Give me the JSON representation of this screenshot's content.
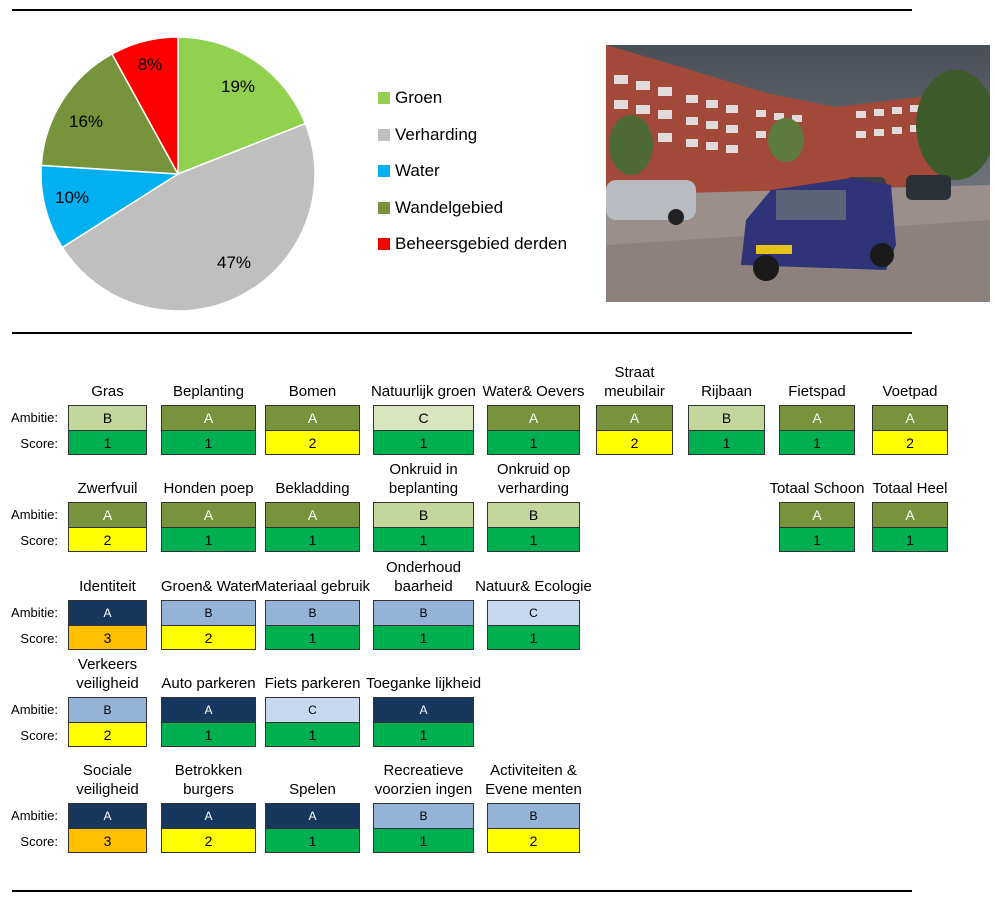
{
  "colors": {
    "groen": "#92D050",
    "verharding": "#BFBFBF",
    "water": "#00B0F0",
    "wandelgebied": "#77933C",
    "derden": "#FF0000",
    "amb_A_green": "#77933C",
    "amb_B_green": "#C3D69B",
    "amb_C_green": "#D7E4BD",
    "amb_A_blue": "#17375E",
    "amb_B_blue": "#95B3D7",
    "amb_C_blue": "#C6D9F1",
    "score_1": "#00B050",
    "score_2": "#FFFF00",
    "score_3": "#FFC000"
  },
  "chart_data": {
    "type": "pie",
    "slices": [
      {
        "label": "Groen",
        "value": 19,
        "text": "19%",
        "color": "#92D050"
      },
      {
        "label": "Verharding",
        "value": 47,
        "text": "47%",
        "color": "#BFBFBF"
      },
      {
        "label": "Water",
        "value": 10,
        "text": "10%",
        "color": "#00B0F0"
      },
      {
        "label": "Wandelgebied",
        "value": 16,
        "text": "16%",
        "color": "#77933C"
      },
      {
        "label": "Beheersgebied derden",
        "value": 8,
        "text": "8%",
        "color": "#FF0000"
      }
    ],
    "legend_position": "right"
  },
  "legend": [
    {
      "label": "Groen",
      "color": "#92D050"
    },
    {
      "label": "Verharding",
      "color": "#BFBFBF"
    },
    {
      "label": "Water",
      "color": "#00B0F0"
    },
    {
      "label": "Wandelgebied",
      "color": "#77933C"
    },
    {
      "label": "Beheersgebied derden",
      "color": "#FF0000"
    }
  ],
  "labels": {
    "ambitie": "Ambitie:",
    "score": "Score:"
  },
  "rows": [
    {
      "items": [
        {
          "title": "Gras",
          "ambitie": "B",
          "amb_color": "#C3D69B",
          "score": "1"
        },
        {
          "title": "Beplanting",
          "ambitie": "A",
          "amb_color": "#77933C",
          "score": "1"
        },
        {
          "title": "Bomen",
          "ambitie": "A",
          "amb_color": "#77933C",
          "score": "2"
        },
        {
          "title": "Natuurlijk groen",
          "ambitie": "C",
          "amb_color": "#D7E4BD",
          "score": "1"
        },
        {
          "title": "Water& Oevers",
          "ambitie": "A",
          "amb_color": "#77933C",
          "score": "1"
        },
        {
          "title": "Straat meubilair",
          "ambitie": "A",
          "amb_color": "#77933C",
          "score": "2"
        },
        {
          "title": "Rijbaan",
          "ambitie": "B",
          "amb_color": "#C3D69B",
          "score": "1"
        },
        {
          "title": "Fietspad",
          "ambitie": "A",
          "amb_color": "#77933C",
          "score": "1"
        },
        {
          "title": "Voetpad",
          "ambitie": "A",
          "amb_color": "#77933C",
          "score": "2"
        }
      ]
    },
    {
      "items": [
        {
          "title": "Zwerfvuil",
          "ambitie": "A",
          "amb_color": "#77933C",
          "score": "2"
        },
        {
          "title": "Honden poep",
          "ambitie": "A",
          "amb_color": "#77933C",
          "score": "1"
        },
        {
          "title": "Bekladding",
          "ambitie": "A",
          "amb_color": "#77933C",
          "score": "1"
        },
        {
          "title": "Onkruid in beplanting",
          "ambitie": "B",
          "amb_color": "#C3D69B",
          "score": "1"
        },
        {
          "title": "Onkruid op verharding",
          "ambitie": "B",
          "amb_color": "#C3D69B",
          "score": "1"
        },
        {
          "title": "Totaal Schoon",
          "ambitie": "A",
          "amb_color": "#77933C",
          "score": "1"
        },
        {
          "title": "Totaal Heel",
          "ambitie": "A",
          "amb_color": "#77933C",
          "score": "1"
        }
      ]
    },
    {
      "items": [
        {
          "title": "Identiteit",
          "ambitie": "A",
          "amb_color": "#17375E",
          "score": "3"
        },
        {
          "title": "Groen& Water",
          "ambitie": "B",
          "amb_color": "#95B3D7",
          "score": "2"
        },
        {
          "title": "Materiaal gebruik",
          "ambitie": "B",
          "amb_color": "#95B3D7",
          "score": "1"
        },
        {
          "title": "Onderhoud baarheid",
          "ambitie": "B",
          "amb_color": "#95B3D7",
          "score": "1"
        },
        {
          "title": "Natuur& Ecologie",
          "ambitie": "C",
          "amb_color": "#C6D9F1",
          "score": "1"
        }
      ]
    },
    {
      "items": [
        {
          "title": "Verkeers veiligheid",
          "ambitie": "B",
          "amb_color": "#95B3D7",
          "score": "2"
        },
        {
          "title": "Auto parkeren",
          "ambitie": "A",
          "amb_color": "#17375E",
          "score": "1"
        },
        {
          "title": "Fiets parkeren",
          "ambitie": "C",
          "amb_color": "#C6D9F1",
          "score": "1"
        },
        {
          "title": "Toeganke lijkheid",
          "ambitie": "A",
          "amb_color": "#17375E",
          "score": "1"
        }
      ]
    },
    {
      "items": [
        {
          "title": "Sociale veiligheid",
          "ambitie": "A",
          "amb_color": "#17375E",
          "score": "3"
        },
        {
          "title": "Betrokken burgers",
          "ambitie": "A",
          "amb_color": "#17375E",
          "score": "2"
        },
        {
          "title": "Spelen",
          "ambitie": "A",
          "amb_color": "#17375E",
          "score": "1"
        },
        {
          "title": "Recreatieve voorzien ingen",
          "ambitie": "B",
          "amb_color": "#95B3D7",
          "score": "1"
        },
        {
          "title": "Activiteiten & Evene menten",
          "ambitie": "B",
          "amb_color": "#95B3D7",
          "score": "2"
        }
      ]
    }
  ]
}
